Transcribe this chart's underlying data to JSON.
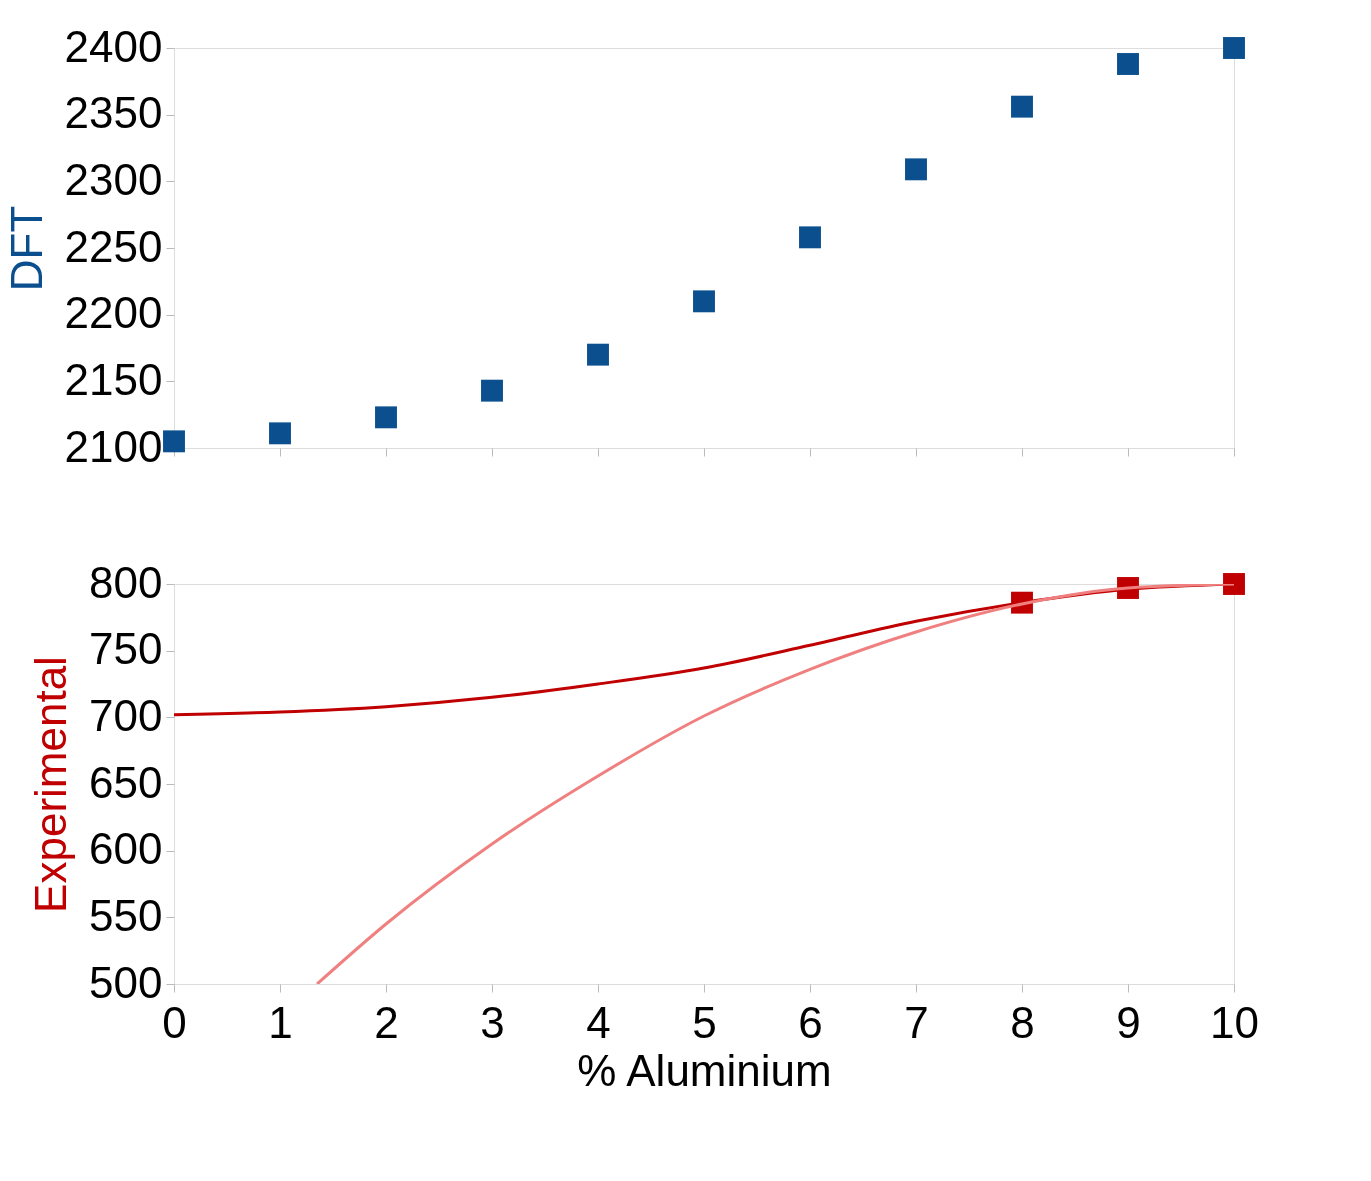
{
  "chart_data": [
    {
      "type": "scatter",
      "ylabel": "DFT",
      "xlim": [
        0,
        10
      ],
      "xticks": [
        0,
        1,
        2,
        3,
        4,
        5,
        6,
        7,
        8,
        9,
        10
      ],
      "ylim": [
        2100,
        2400
      ],
      "yticks": [
        2100,
        2150,
        2200,
        2250,
        2300,
        2350,
        2400
      ],
      "tick_labels": "y",
      "grid": false,
      "x": [
        0,
        1,
        2,
        3,
        4,
        5,
        6,
        7,
        8,
        9,
        10
      ],
      "series": [
        {
          "color": "#0b4f8f",
          "marker": "square",
          "values": [
            2105,
            2111,
            2123,
            2143,
            2170,
            2210,
            2258,
            2309,
            2356,
            2388,
            2400
          ]
        }
      ]
    },
    {
      "type": "line",
      "ylabel": "Experimental",
      "xlabel": "% Aluminium",
      "xlim": [
        0,
        10
      ],
      "xticks": [
        0,
        1,
        2,
        3,
        4,
        5,
        6,
        7,
        8,
        9,
        10
      ],
      "ylim": [
        500,
        800
      ],
      "yticks": [
        500,
        550,
        600,
        650,
        700,
        750,
        800
      ],
      "grid": false,
      "series": [
        {
          "type": "scatter",
          "color": "#c00000",
          "marker": "square",
          "x": [
            8,
            9,
            10
          ],
          "values": [
            786,
            797,
            800
          ]
        },
        {
          "type": "line",
          "color": "#c00000",
          "x": [
            0,
            1,
            2,
            3,
            4,
            5,
            6,
            7,
            8,
            9,
            10
          ],
          "values": [
            702,
            704,
            708,
            715,
            725,
            737,
            754,
            772,
            786,
            796,
            800
          ]
        },
        {
          "type": "line",
          "color": "#f08080",
          "x": [
            1.35,
            2,
            3,
            4,
            5,
            6,
            7,
            8,
            9,
            10
          ],
          "values": [
            500,
            545,
            605,
            656,
            701,
            736,
            764,
            785,
            797,
            800
          ]
        }
      ]
    }
  ]
}
